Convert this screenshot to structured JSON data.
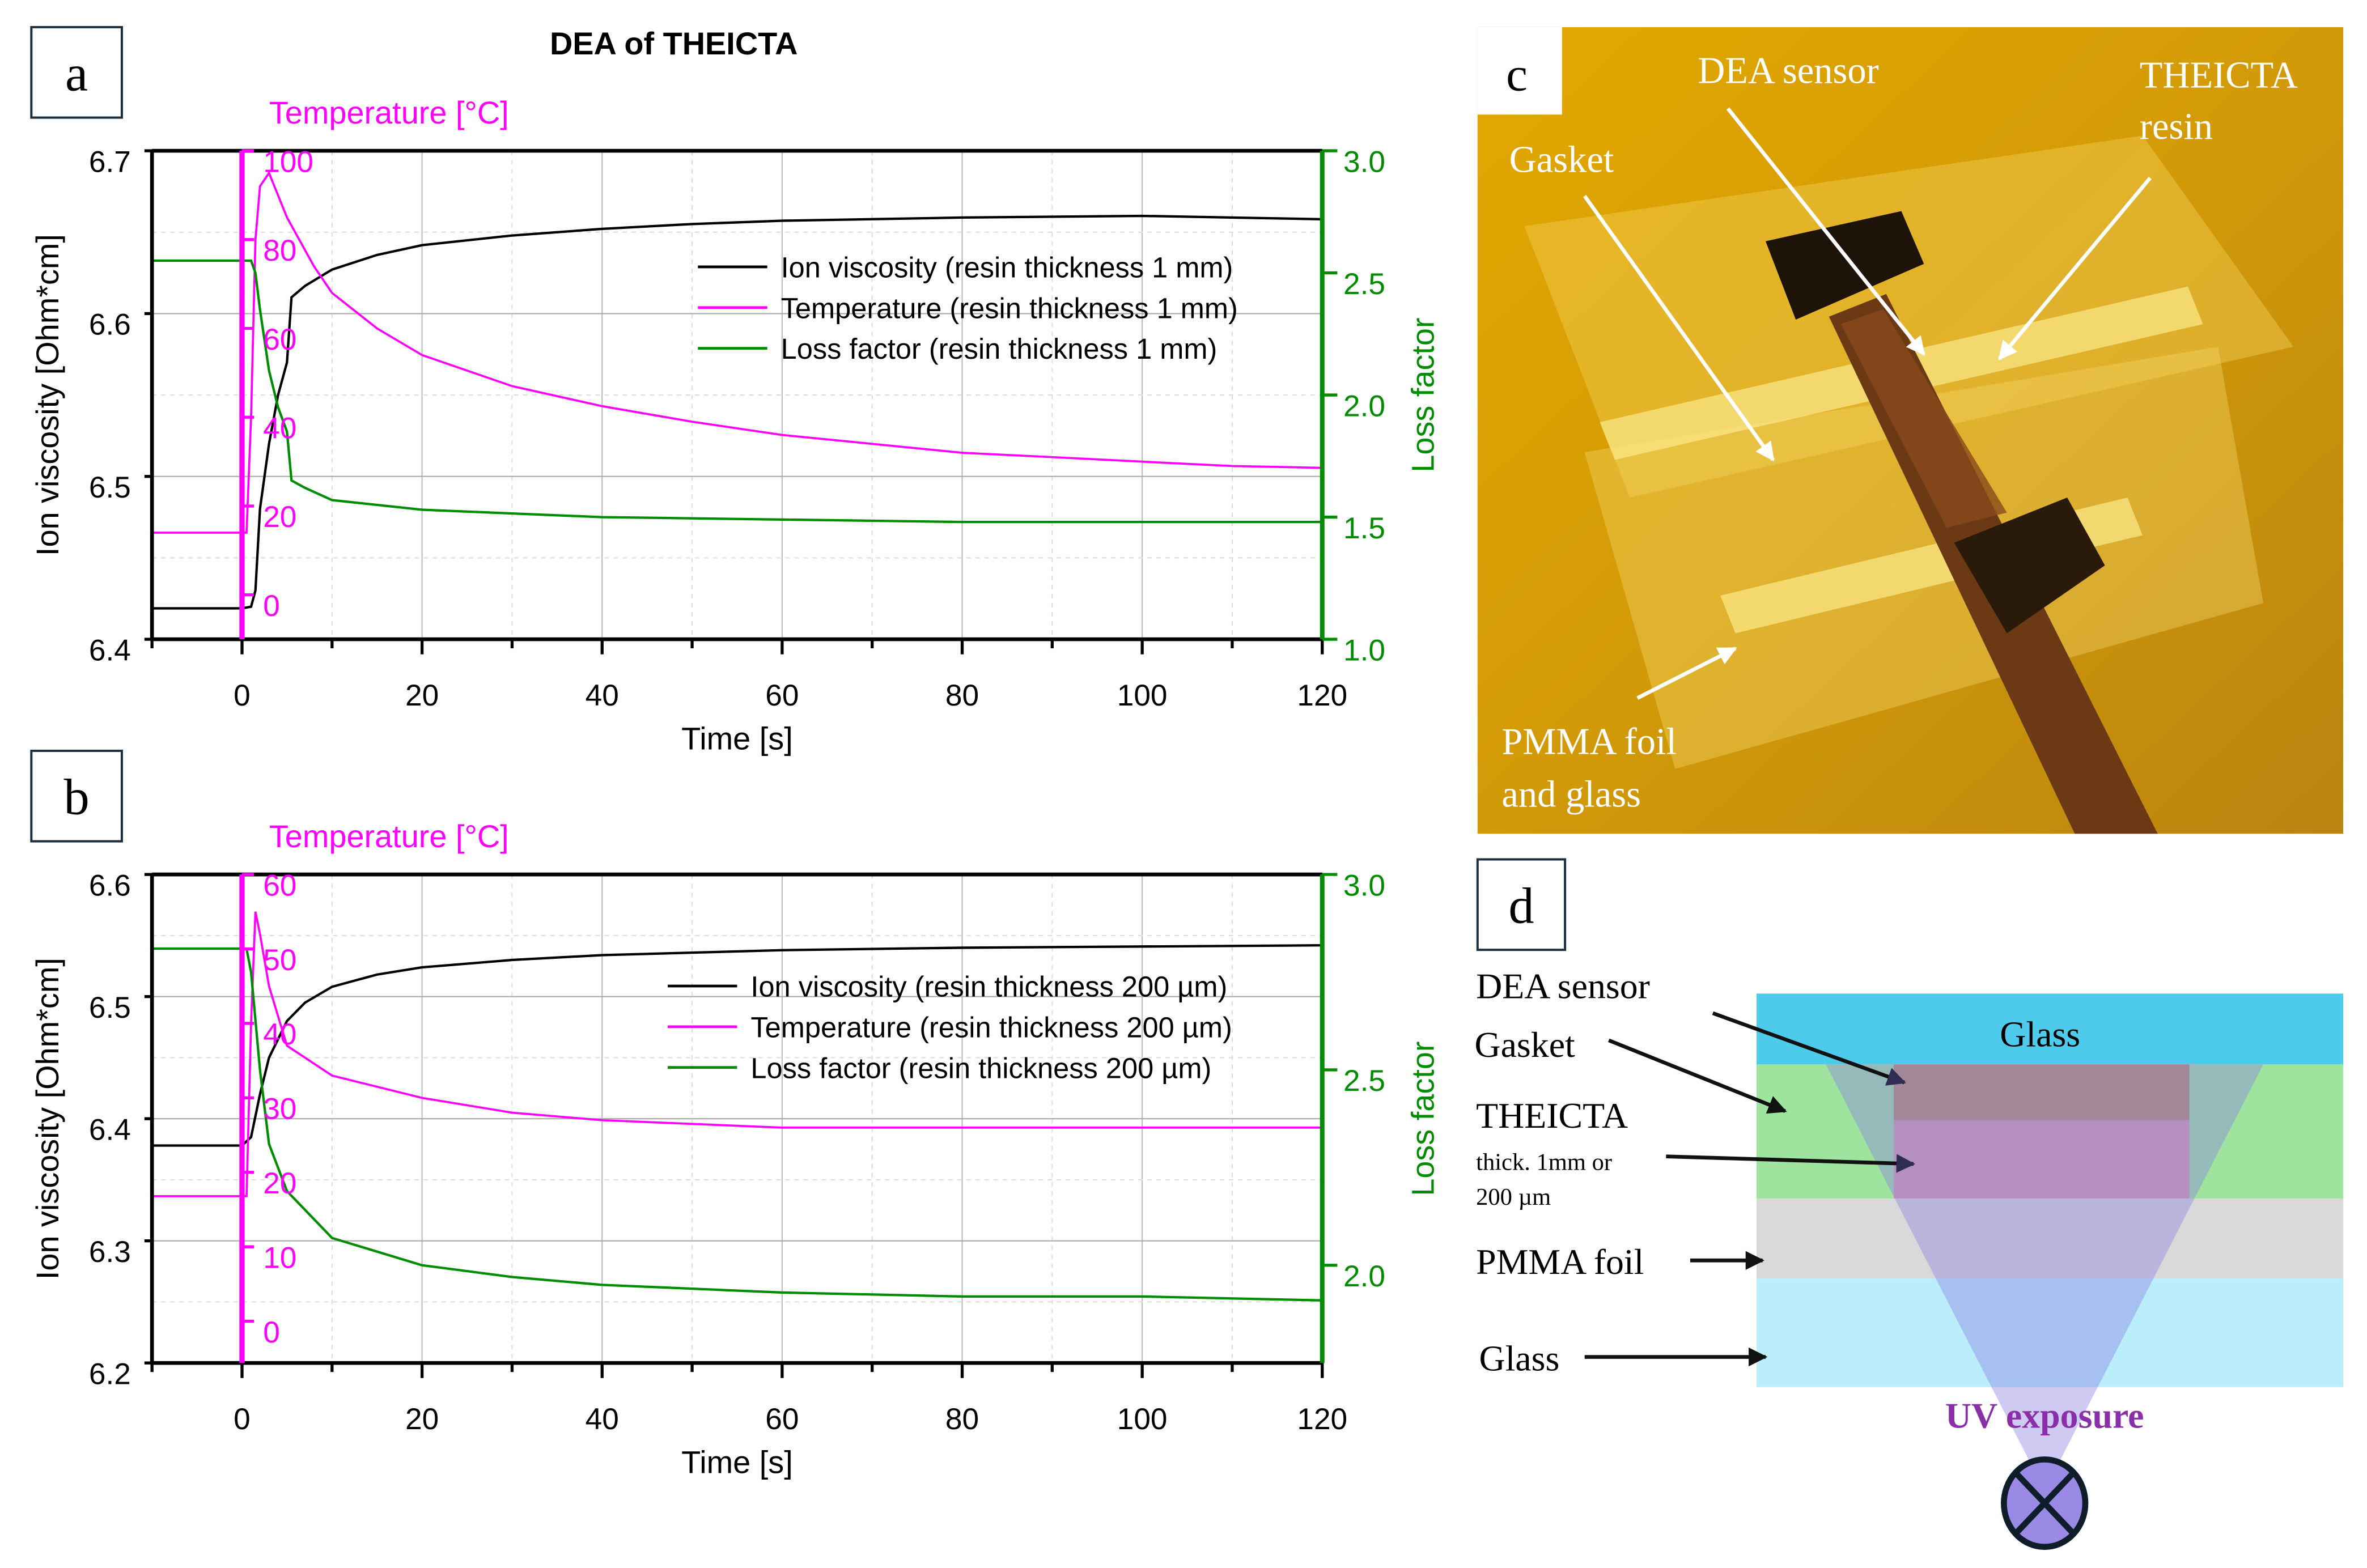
{
  "figure_title": "DEA of THEICTA",
  "panel_labels": {
    "a": "a",
    "b": "b",
    "c": "c",
    "d": "d"
  },
  "colors": {
    "ion": "#000000",
    "temperature": "#ff00ff",
    "loss": "#008c00"
  },
  "chart_data": [
    {
      "type": "line",
      "panel": "a",
      "xlabel": "Time [s]",
      "ylabel": "Ion viscosity [Ohm*cm]",
      "y2label": "Loss factor",
      "y3label": "Temperature [°C]",
      "xlim": [
        -10,
        120
      ],
      "xticks": [
        0,
        20,
        40,
        60,
        80,
        100,
        120
      ],
      "ylim": [
        6.4,
        6.7
      ],
      "yticks": [
        "6.4",
        "6.5",
        "6.6",
        "6.7"
      ],
      "y2lim": [
        1.0,
        3.0
      ],
      "y2ticks": [
        "1.0",
        "1.5",
        "2.0",
        "2.5",
        "3.0"
      ],
      "y3lim": [
        -10,
        100
      ],
      "y3ticks": [
        "0",
        "20",
        "40",
        "60",
        "80",
        "100"
      ],
      "grid": true,
      "legend_placement": "upper-right",
      "series": [
        {
          "name": "Ion viscosity (resin thickness 1 mm)",
          "axis": "left",
          "color": "#000000",
          "x": [
            -10,
            0,
            1,
            1.5,
            2,
            3,
            4,
            5,
            5.5,
            7,
            10,
            15,
            20,
            30,
            40,
            50,
            60,
            80,
            100,
            120
          ],
          "y": [
            6.419,
            6.419,
            6.42,
            6.43,
            6.48,
            6.52,
            6.55,
            6.57,
            6.61,
            6.617,
            6.627,
            6.636,
            6.642,
            6.648,
            6.652,
            6.655,
            6.657,
            6.659,
            6.66,
            6.658
          ]
        },
        {
          "name": "Temperature (resin thickness 1 mm)",
          "axis": "temp",
          "color": "#ff00ff",
          "x": [
            -10,
            0.5,
            1,
            1.5,
            2,
            3,
            5,
            8,
            10,
            15,
            20,
            30,
            40,
            50,
            60,
            70,
            80,
            90,
            100,
            110,
            120
          ],
          "y": [
            14,
            14,
            40,
            80,
            92,
            95,
            85,
            74,
            68,
            60,
            54,
            47,
            42.5,
            39,
            36,
            34,
            32,
            31,
            30,
            29,
            28.6
          ]
        },
        {
          "name": "Loss factor (resin thickness 1 mm)",
          "axis": "right",
          "color": "#008c00",
          "x": [
            -10,
            1,
            1.5,
            2,
            3,
            4,
            5,
            5.5,
            7,
            10,
            20,
            40,
            60,
            80,
            100,
            120
          ],
          "y": [
            2.55,
            2.55,
            2.5,
            2.35,
            2.1,
            1.95,
            1.85,
            1.65,
            1.62,
            1.57,
            1.53,
            1.5,
            1.49,
            1.48,
            1.48,
            1.48
          ]
        }
      ]
    },
    {
      "type": "line",
      "panel": "b",
      "xlabel": "Time [s]",
      "ylabel": "Ion viscosity [Ohm*cm]",
      "y2label": "Loss factor",
      "y3label": "Temperature [°C]",
      "xlim": [
        -10,
        120
      ],
      "xticks": [
        0,
        20,
        40,
        60,
        80,
        100,
        120
      ],
      "ylim": [
        6.2,
        6.6
      ],
      "yticks": [
        "6.2",
        "6.3",
        "6.4",
        "6.5",
        "6.6"
      ],
      "y2lim": [
        1.75,
        3.0
      ],
      "y2ticks": [
        "2.0",
        "2.5",
        "3.0"
      ],
      "y3lim": [
        -5.6,
        60
      ],
      "y3ticks": [
        "0",
        "10",
        "20",
        "30",
        "40",
        "50",
        "60"
      ],
      "grid": true,
      "legend_placement": "upper-right",
      "series": [
        {
          "name": "Ion viscosity (resin thickness 200 µm)",
          "axis": "left",
          "color": "#000000",
          "x": [
            -10,
            0,
            1,
            2,
            3,
            5,
            7,
            10,
            15,
            20,
            30,
            40,
            60,
            80,
            100,
            120
          ],
          "y": [
            6.378,
            6.378,
            6.385,
            6.42,
            6.45,
            6.48,
            6.495,
            6.508,
            6.518,
            6.524,
            6.53,
            6.534,
            6.538,
            6.54,
            6.541,
            6.542
          ]
        },
        {
          "name": "Temperature (resin thickness 200 µm)",
          "axis": "temp",
          "color": "#ff00ff",
          "x": [
            -10,
            0.5,
            1,
            1.5,
            2,
            3,
            5,
            10,
            20,
            30,
            40,
            60,
            80,
            100,
            120
          ],
          "y": [
            16.8,
            16.8,
            40,
            55,
            52,
            45,
            37,
            33,
            30,
            28,
            27,
            26,
            26,
            26,
            26
          ]
        },
        {
          "name": "Loss factor (resin thickness 200 µm)",
          "axis": "right",
          "color": "#008c00",
          "x": [
            -10,
            0.5,
            1,
            2,
            3,
            5,
            10,
            20,
            30,
            40,
            60,
            80,
            100,
            120
          ],
          "y": [
            2.81,
            2.81,
            2.75,
            2.5,
            2.31,
            2.19,
            2.07,
            2.0,
            1.97,
            1.95,
            1.93,
            1.92,
            1.92,
            1.91
          ]
        }
      ]
    }
  ],
  "photo_c": {
    "labels": [
      "DEA sensor",
      "THEICTA",
      "resin",
      "Gasket",
      "PMMA foil",
      "and glass"
    ]
  },
  "diagram_d": {
    "layer_glass_top": "Glass",
    "label_dea_sensor": "DEA sensor",
    "label_gasket": "Gasket",
    "label_theicta": "THEICTA",
    "label_thick1": "thick. 1mm or",
    "label_thick2": "200 µm",
    "label_pmma": "PMMA foil",
    "label_glass": "Glass",
    "uv_label": "UV exposure"
  }
}
